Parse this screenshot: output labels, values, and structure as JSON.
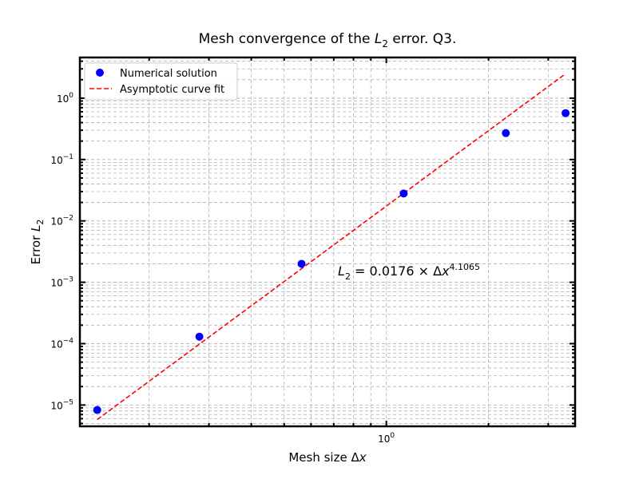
{
  "chart_data": {
    "type": "scatter",
    "title": {
      "prefix": "Mesh convergence of the ",
      "math": "L",
      "sub": "2",
      "suffix": " error. Q3."
    },
    "xlabel": {
      "text": "Mesh size Δ",
      "math": "x"
    },
    "ylabel": {
      "text": "Error ",
      "math": "L",
      "sub": "2"
    },
    "xscale": "log",
    "yscale": "log",
    "xlim": [
      0.125,
      3.6
    ],
    "ylim": [
      4.5e-06,
      4.6
    ],
    "x_ticklabels": [
      {
        "value": 1,
        "base": "10",
        "exp": "0"
      }
    ],
    "y_ticklabels": [
      {
        "value": 1e-05,
        "base": "10",
        "exp": "−5"
      },
      {
        "value": 0.0001,
        "base": "10",
        "exp": "−4"
      },
      {
        "value": 0.001,
        "base": "10",
        "exp": "−3"
      },
      {
        "value": 0.01,
        "base": "10",
        "exp": "−2"
      },
      {
        "value": 0.1,
        "base": "10",
        "exp": "−1"
      },
      {
        "value": 1,
        "base": "10",
        "exp": "0"
      }
    ],
    "grid": true,
    "legend_position": "top-left",
    "series": [
      {
        "name": "Numerical solution",
        "style": "scatter",
        "color": "#0000ff",
        "x": [
          0.140625,
          0.28125,
          0.5625,
          1.125,
          2.25,
          3.375
        ],
        "y": [
          8.3e-06,
          0.00013,
          0.002,
          0.028,
          0.27,
          0.57
        ]
      },
      {
        "name": "Asymptotic curve fit",
        "style": "dashed-line",
        "color": "#ff0000",
        "x": [
          0.140625,
          3.375
        ],
        "y": [
          5.8e-06,
          2.5
        ]
      }
    ],
    "annotation": {
      "lhs": "L",
      "lhs_sub": "2",
      "rhs": " = 0.0176 × Δ",
      "var": "x",
      "exponent": "4.1065",
      "x": 0.72,
      "y": 0.0013
    }
  }
}
